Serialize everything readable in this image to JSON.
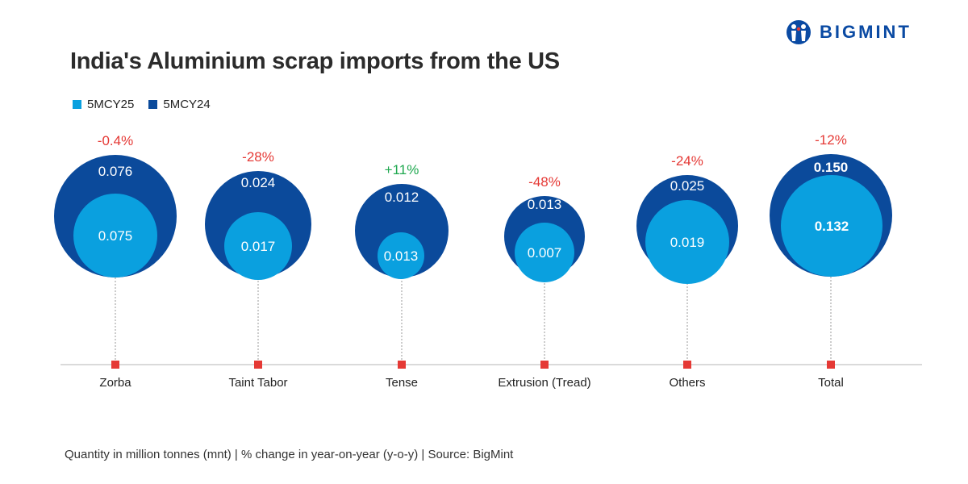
{
  "brand": {
    "name": "BIGMINT"
  },
  "footer": {
    "note": "Quantity in million tonnes (mnt) | % change in year-on-year (y-o-y) | Source: BigMint"
  },
  "colors": {
    "cy25": "#0aa0df",
    "cy24": "#0b4a9b",
    "negative": "#e53935",
    "positive": "#1fa84f",
    "marker": "#e53935",
    "axis": "#999999"
  },
  "chart_data": {
    "type": "bubble",
    "title": "India's Aluminium scrap imports from the US",
    "legend": [
      {
        "name": "5MCY25"
      },
      {
        "name": "5MCY24"
      }
    ],
    "categories": [
      "Zorba",
      "Taint Tabor",
      "Tense",
      "Extrusion (Tread)",
      "Others",
      "Total"
    ],
    "series": [
      {
        "name": "5MCY25",
        "values": [
          "0.075",
          "0.017",
          "0.013",
          "0.007",
          "0.019",
          "0.132"
        ]
      },
      {
        "name": "5MCY24",
        "values": [
          "0.076",
          "0.024",
          "0.012",
          "0.013",
          "0.025",
          "0.150"
        ]
      }
    ],
    "change": [
      "-0.4%",
      "-28%",
      "+11%",
      "-48%",
      "-24%",
      "-12%"
    ],
    "unit": "mnt"
  }
}
